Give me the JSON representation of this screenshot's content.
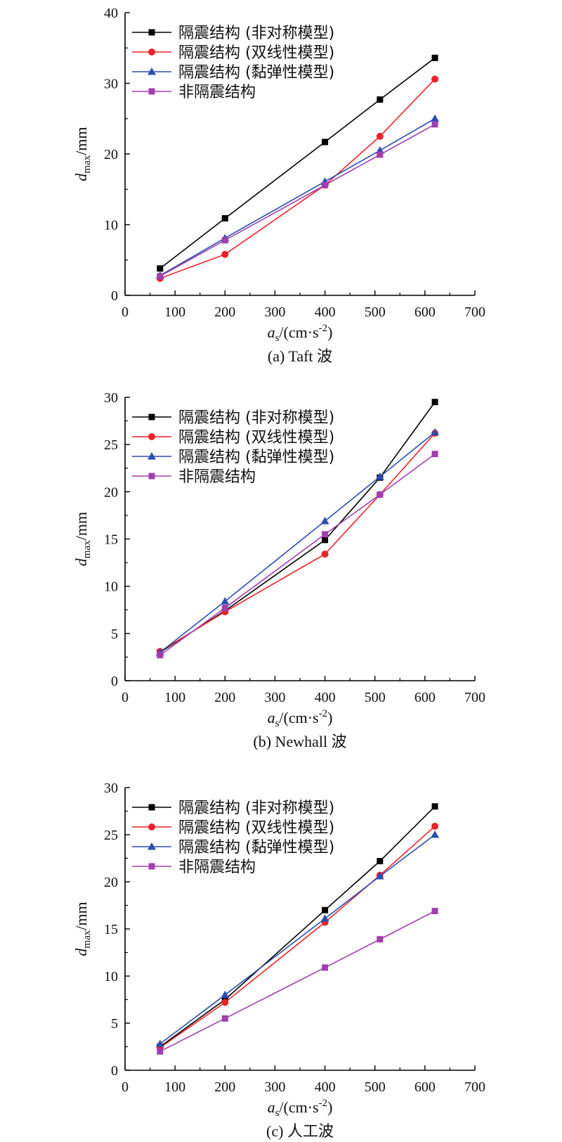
{
  "chart_data": [
    {
      "type": "line",
      "caption": "(a) Taft 波",
      "xlabel": "a_s/(cm·s^-2)",
      "ylabel": "d_max/mm",
      "xlim": [
        0,
        700
      ],
      "ylim": [
        0,
        40
      ],
      "xticks": [
        0,
        100,
        200,
        300,
        400,
        500,
        600,
        700
      ],
      "yticks": [
        0,
        10,
        20,
        30,
        40
      ],
      "legend_position": "top-left",
      "x": [
        70,
        200,
        400,
        510,
        620
      ],
      "series": [
        {
          "name": "隔震结构 (非对称模型)",
          "marker": "square",
          "color": "#000000",
          "values": [
            3.8,
            10.9,
            21.7,
            27.7,
            33.6
          ]
        },
        {
          "name": "隔震结构 (双线性模型)",
          "marker": "circle",
          "color": "#e8242a",
          "values": [
            2.4,
            5.8,
            15.6,
            22.5,
            30.6
          ]
        },
        {
          "name": "隔震结构 (黏弹性模型)",
          "marker": "triangle",
          "color": "#2b4fae",
          "values": [
            2.8,
            8.1,
            16.1,
            20.5,
            25.0
          ]
        },
        {
          "name": "非隔震结构",
          "marker": "square",
          "color": "#a23eb0",
          "values": [
            2.7,
            7.8,
            15.6,
            19.9,
            24.2
          ]
        }
      ]
    },
    {
      "type": "line",
      "caption": "(b) Newhall 波",
      "xlabel": "a_s/(cm·s^-2)",
      "ylabel": "d_max/mm",
      "xlim": [
        0,
        700
      ],
      "ylim": [
        0,
        30
      ],
      "xticks": [
        0,
        100,
        200,
        300,
        400,
        500,
        600,
        700
      ],
      "yticks": [
        0,
        5,
        10,
        15,
        20,
        25,
        30
      ],
      "legend_position": "top-left",
      "x": [
        70,
        200,
        400,
        510,
        620
      ],
      "series": [
        {
          "name": "隔震结构 (非对称模型)",
          "marker": "square",
          "color": "#000000",
          "values": [
            3.0,
            7.4,
            14.9,
            21.5,
            29.5
          ]
        },
        {
          "name": "隔震结构 (双线性模型)",
          "marker": "circle",
          "color": "#e8242a",
          "values": [
            3.1,
            7.3,
            13.4,
            19.7,
            26.2
          ]
        },
        {
          "name": "隔震结构 (黏弹性模型)",
          "marker": "triangle",
          "color": "#2b4fae",
          "values": [
            3.0,
            8.4,
            16.9,
            21.6,
            26.3
          ]
        },
        {
          "name": "非隔震结构",
          "marker": "square",
          "color": "#a23eb0",
          "values": [
            2.7,
            7.7,
            15.5,
            19.7,
            24.0
          ]
        }
      ]
    },
    {
      "type": "line",
      "caption": "(c) 人工波",
      "xlabel": "a_s/(cm·s^-2)",
      "ylabel": "d_max/mm",
      "xlim": [
        0,
        700
      ],
      "ylim": [
        0,
        30
      ],
      "xticks": [
        0,
        100,
        200,
        300,
        400,
        500,
        600,
        700
      ],
      "yticks": [
        0,
        5,
        10,
        15,
        20,
        25,
        30
      ],
      "legend_position": "top-left",
      "x": [
        70,
        200,
        400,
        510,
        620
      ],
      "series": [
        {
          "name": "隔震结构 (非对称模型)",
          "marker": "square",
          "color": "#000000",
          "values": [
            2.5,
            7.5,
            17.0,
            22.2,
            28.0
          ]
        },
        {
          "name": "隔震结构 (双线性模型)",
          "marker": "circle",
          "color": "#e8242a",
          "values": [
            2.4,
            7.2,
            15.7,
            20.7,
            25.9
          ]
        },
        {
          "name": "隔震结构 (黏弹性模型)",
          "marker": "triangle",
          "color": "#2b4fae",
          "values": [
            2.8,
            8.0,
            16.1,
            20.6,
            25.0
          ]
        },
        {
          "name": "非隔震结构",
          "marker": "square",
          "color": "#a23eb0",
          "values": [
            2.0,
            5.5,
            10.9,
            13.9,
            16.9
          ]
        }
      ]
    }
  ]
}
